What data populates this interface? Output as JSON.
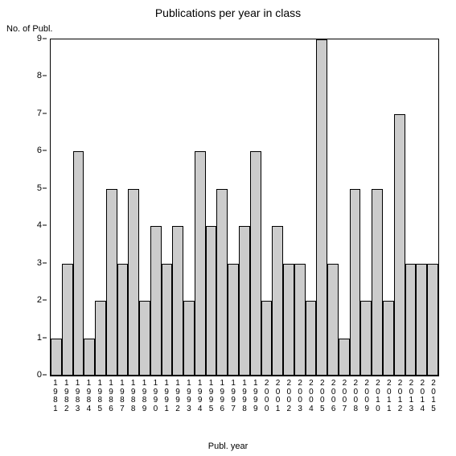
{
  "chart": {
    "type": "bar",
    "title": "Publications per year in class",
    "title_fontsize": 14,
    "y_axis_label": "No. of Publ.",
    "x_axis_label": "Publ. year",
    "label_fontsize": 11,
    "ylim": [
      0,
      9
    ],
    "ytick_step": 1,
    "yticks": [
      0,
      1,
      2,
      3,
      4,
      5,
      6,
      7,
      8,
      9
    ],
    "categories": [
      "1981",
      "1982",
      "1983",
      "1984",
      "1985",
      "1986",
      "1987",
      "1988",
      "1989",
      "1990",
      "1991",
      "1992",
      "1993",
      "1994",
      "1995",
      "1996",
      "1997",
      "1998",
      "1999",
      "2000",
      "2001",
      "2002",
      "2003",
      "2004",
      "2005",
      "2006",
      "2007",
      "2008",
      "2009",
      "2010",
      "2011",
      "2012",
      "2013",
      "2014",
      "2015"
    ],
    "values": [
      1,
      3,
      6,
      1,
      2,
      5,
      3,
      5,
      2,
      4,
      3,
      4,
      2,
      6,
      4,
      5,
      3,
      4,
      6,
      2,
      4,
      3,
      3,
      2,
      9,
      3,
      1,
      5,
      2,
      5,
      2,
      7,
      3,
      3,
      3
    ],
    "bar_color": "#cccccc",
    "bar_border_color": "#000000",
    "axis_color": "#000000",
    "background_color": "#ffffff",
    "tick_fontsize": 11,
    "xtick_fontsize": 10
  }
}
